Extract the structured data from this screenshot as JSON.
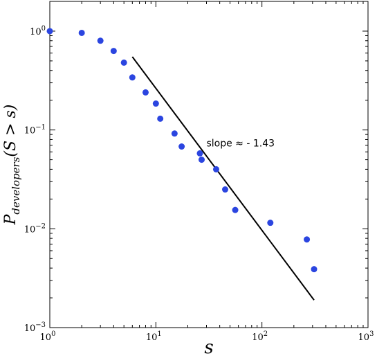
{
  "chart_data": {
    "type": "scatter",
    "title": "",
    "xlabel": "s",
    "ylabel": "P_developers(S > s)",
    "xscale": "log",
    "yscale": "log",
    "xlim": [
      1,
      1000
    ],
    "ylim": [
      0.001,
      2
    ],
    "grid": false,
    "point_color": "#2b45e0",
    "line_color": "#000000",
    "x_ticks": [
      {
        "value": 1,
        "base": "10",
        "exp": "0"
      },
      {
        "value": 10,
        "base": "10",
        "exp": "1"
      },
      {
        "value": 100,
        "base": "10",
        "exp": "2"
      },
      {
        "value": 1000,
        "base": "10",
        "exp": "3"
      }
    ],
    "y_ticks": [
      {
        "value": 0.001,
        "base": "10",
        "exp": "−3"
      },
      {
        "value": 0.01,
        "base": "10",
        "exp": "−2"
      },
      {
        "value": 0.1,
        "base": "10",
        "exp": "−1"
      },
      {
        "value": 1,
        "base": "10",
        "exp": "0"
      }
    ],
    "series": [
      {
        "type": "scatter",
        "points": [
          {
            "x": 1,
            "y": 1.0
          },
          {
            "x": 2,
            "y": 0.96
          },
          {
            "x": 3,
            "y": 0.8
          },
          {
            "x": 4,
            "y": 0.63
          },
          {
            "x": 5,
            "y": 0.48
          },
          {
            "x": 6,
            "y": 0.34
          },
          {
            "x": 8,
            "y": 0.24
          },
          {
            "x": 10,
            "y": 0.185
          },
          {
            "x": 11,
            "y": 0.13
          },
          {
            "x": 15,
            "y": 0.092
          },
          {
            "x": 17.5,
            "y": 0.068
          },
          {
            "x": 26,
            "y": 0.058
          },
          {
            "x": 27,
            "y": 0.05
          },
          {
            "x": 37,
            "y": 0.04
          },
          {
            "x": 45,
            "y": 0.025
          },
          {
            "x": 56,
            "y": 0.0155
          },
          {
            "x": 120,
            "y": 0.0115
          },
          {
            "x": 265,
            "y": 0.0078
          },
          {
            "x": 310,
            "y": 0.0039
          }
        ]
      },
      {
        "type": "line",
        "points": [
          {
            "x": 6,
            "y": 0.55
          },
          {
            "x": 310,
            "y": 0.0019
          }
        ]
      }
    ],
    "annotation": {
      "text": "slope ≈ - 1.43",
      "x": 30,
      "y": 0.068
    }
  }
}
